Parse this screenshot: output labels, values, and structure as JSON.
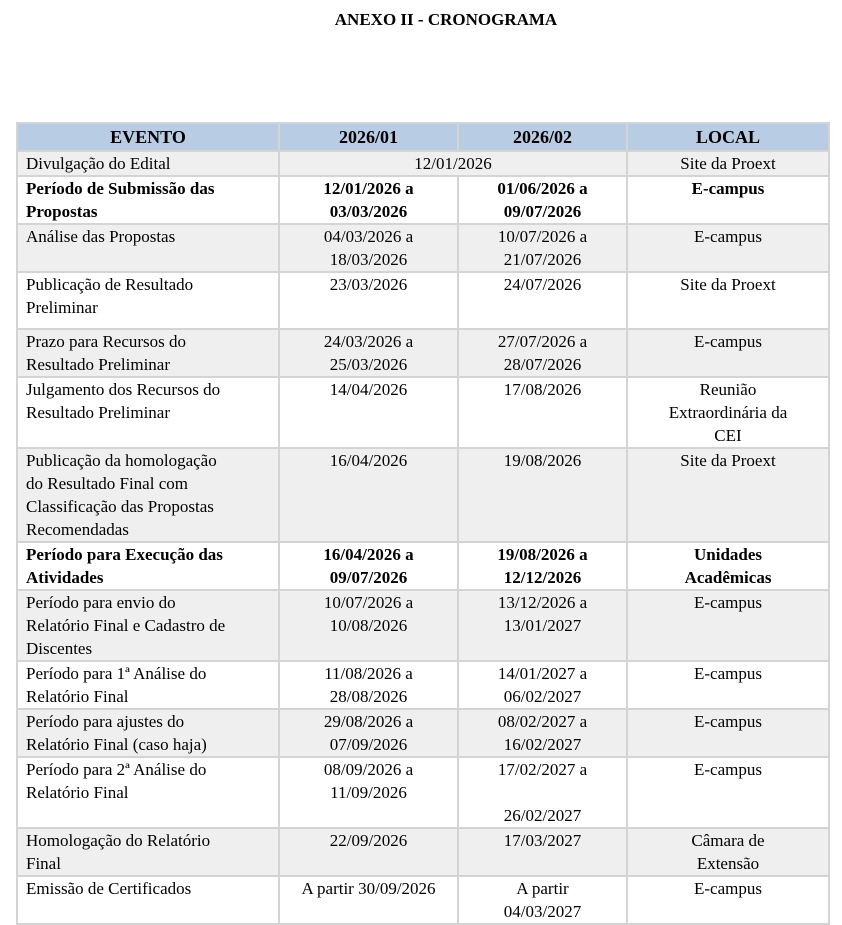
{
  "title": "ANEXO II - CRONOGRAMA",
  "header": {
    "evento": "EVENTO",
    "p1": "2026/01",
    "p2": "2026/02",
    "local": "LOCAL"
  },
  "rows": [
    {
      "evento": "Divulgação do Edital",
      "merged": "12/01/2026",
      "local": "Site da Proext",
      "bold": false
    },
    {
      "evento": "Período de Submissão das\nPropostas",
      "p1": "12/01/2026 a\n03/03/2026",
      "p2": "01/06/2026 a\n09/07/2026",
      "local": "E-campus",
      "bold": true
    },
    {
      "evento": "Análise das Propostas",
      "p1": "04/03/2026 a\n18/03/2026",
      "p2": "10/07/2026 a\n21/07/2026",
      "local": "E-campus",
      "bold": false
    },
    {
      "evento": "Publicação de Resultado\nPreliminar",
      "p1": "23/03/2026",
      "p2": "24/07/2026",
      "local": "Site da Proext",
      "bold": false
    },
    {
      "evento": "Prazo para Recursos do\nResultado Preliminar",
      "p1": "24/03/2026 a\n25/03/2026",
      "p2": "27/07/2026 a\n28/07/2026",
      "local": "E-campus",
      "bold": false
    },
    {
      "evento": "Julgamento dos Recursos do\nResultado Preliminar",
      "p1": "14/04/2026",
      "p2": "17/08/2026",
      "local": "Reunião\nExtraordinária da\nCEI",
      "bold": false
    },
    {
      "evento": "Publicação da homologação\ndo Resultado Final com\nClassificação das Propostas\nRecomendadas",
      "p1": "16/04/2026",
      "p2": "19/08/2026",
      "local": "Site da Proext",
      "bold": false
    },
    {
      "evento": "Período para Execução das\nAtividades",
      "p1": "16/04/2026 a\n09/07/2026",
      "p2": "19/08/2026 a\n12/12/2026",
      "local": "Unidades\nAcadêmicas",
      "bold": true
    },
    {
      "evento": "Período para envio do\nRelatório Final e Cadastro de\nDiscentes",
      "p1": "10/07/2026 a\n10/08/2026",
      "p2": "13/12/2026 a\n13/01/2027",
      "local": "E-campus",
      "bold": false
    },
    {
      "evento": "Período para 1ª Análise do\nRelatório Final",
      "p1": "11/08/2026 a\n28/08/2026",
      "p2": "14/01/2027 a\n06/02/2027",
      "local": "E-campus",
      "bold": false
    },
    {
      "evento": "Período para ajustes do\nRelatório Final (caso haja)",
      "p1": "29/08/2026 a\n07/09/2026",
      "p2": "08/02/2027 a\n16/02/2027",
      "local": "E-campus",
      "bold": false
    },
    {
      "evento": "Período para 2ª Análise do\nRelatório Final",
      "p1": "08/09/2026 a\n11/09/2026",
      "p2": "17/02/2027 a\n\n26/02/2027",
      "local": "E-campus",
      "bold": false
    },
    {
      "evento": "Homologação do Relatório\nFinal",
      "p1": "22/09/2026",
      "p2": "17/03/2027",
      "local": "Câmara de\nExtensão",
      "bold": false
    },
    {
      "evento": "Emissão de Certificados",
      "p1": "A partir 30/09/2026",
      "p2": "A partir\n04/03/2027",
      "local": "E-campus",
      "bold": false
    }
  ]
}
